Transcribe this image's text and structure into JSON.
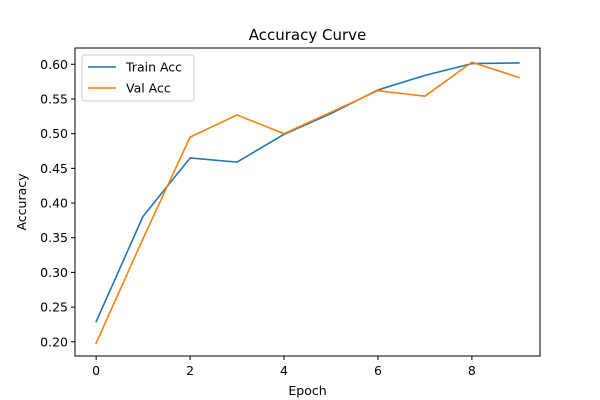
{
  "chart_data": {
    "type": "line",
    "title": "Accuracy Curve",
    "xlabel": "Epoch",
    "ylabel": "Accuracy",
    "x": [
      0,
      1,
      2,
      3,
      4,
      5,
      6,
      7,
      8,
      9
    ],
    "series": [
      {
        "name": "Train Acc",
        "color": "#1f77b4",
        "values": [
          0.229,
          0.381,
          0.465,
          0.459,
          0.499,
          0.529,
          0.563,
          0.584,
          0.601,
          0.602
        ]
      },
      {
        "name": "Val Acc",
        "color": "#ff7f0e",
        "values": [
          0.198,
          0.349,
          0.495,
          0.527,
          0.5,
          0.531,
          0.562,
          0.554,
          0.603,
          0.581
        ]
      }
    ],
    "xlim": [
      -0.45,
      9.45
    ],
    "ylim": [
      0.1795,
      0.6235
    ],
    "xticks": [
      0,
      2,
      4,
      6,
      8
    ],
    "xtick_labels": [
      "0",
      "2",
      "4",
      "6",
      "8"
    ],
    "yticks": [
      0.2,
      0.25,
      0.3,
      0.35,
      0.4,
      0.45,
      0.5,
      0.55,
      0.6
    ],
    "ytick_labels": [
      "0.20",
      "0.25",
      "0.30",
      "0.35",
      "0.40",
      "0.45",
      "0.50",
      "0.55",
      "0.60"
    ],
    "grid": false,
    "legend_position": "top-left"
  }
}
